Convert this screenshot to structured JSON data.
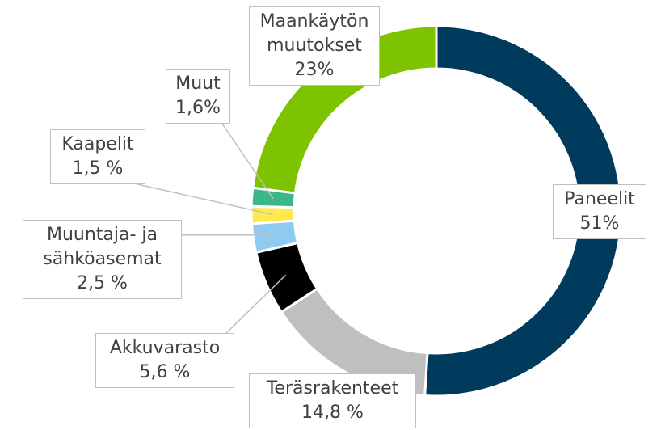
{
  "chart_data": {
    "type": "donut",
    "categories": [
      "Paneelit",
      "Teräsrakenteet",
      "Akkuvarasto",
      "Muuntaja- ja sähköasemat",
      "Kaapelit",
      "Muut",
      "Maankäytön muutokset"
    ],
    "values": [
      51,
      14.8,
      5.6,
      2.5,
      1.5,
      1.6,
      23
    ],
    "value_labels": [
      "51%",
      "14,8 %",
      "5,6 %",
      "2,5 %",
      "1,5 %",
      "1,6%",
      "23%"
    ],
    "colors": [
      "#003a5c",
      "#bfbfbf",
      "#000000",
      "#8ecbf0",
      "#ffe94f",
      "#3bb88a",
      "#7dc300"
    ]
  }
}
